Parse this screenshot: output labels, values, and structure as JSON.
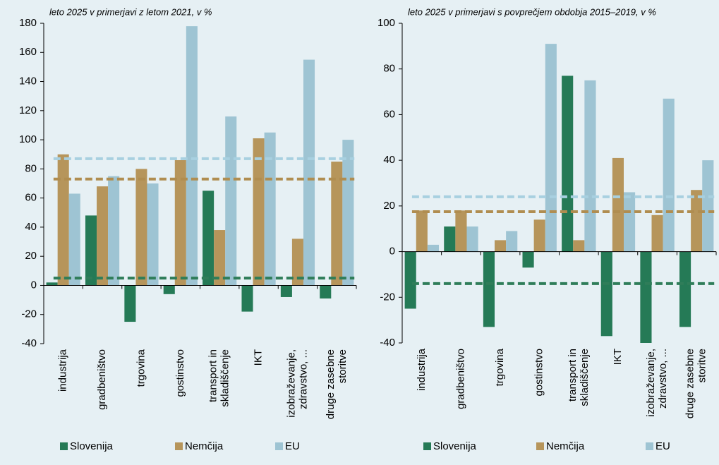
{
  "chart_data": [
    {
      "type": "bar",
      "subtitle": "leto 2025 v primerjavi z letom 2021, v %",
      "categories": [
        "industrija",
        "gradbeništvo",
        "trgovina",
        "gostinstvo",
        "transport in\nskladiščenje",
        "IKT",
        "izobraževanje,\nzdravstvo, ...",
        "druge zasebne\nstoritve"
      ],
      "series": [
        {
          "name": "Slovenija",
          "color": "#257a56",
          "line_color": "#2f7d59",
          "values": [
            2,
            48,
            -25,
            -6,
            65,
            -18,
            -8,
            -9
          ],
          "average": 5
        },
        {
          "name": "Nemčija",
          "color": "#b6955b",
          "line_color": "#b08d50",
          "values": [
            90,
            68,
            80,
            86,
            38,
            101,
            32,
            85
          ],
          "average": 73
        },
        {
          "name": "EU",
          "color": "#9ec4d3",
          "line_color": "#a8d0e0",
          "values": [
            63,
            75,
            70,
            178,
            116,
            105,
            155,
            100
          ],
          "average": 87
        }
      ],
      "ylim": [
        -40,
        180
      ],
      "yticks": [
        -40,
        -20,
        0,
        20,
        40,
        60,
        80,
        100,
        120,
        140,
        160,
        180
      ]
    },
    {
      "type": "bar",
      "subtitle": "leto 2025 v primerjavi s povprečjem obdobja 2015–2019, v %",
      "categories": [
        "industrija",
        "gradbeništvo",
        "trgovina",
        "gostinstvo",
        "transport in\nskladiščenje",
        "IKT",
        "izobraževanje,\nzdravstvo, ...",
        "druge zasebne\nstoritve"
      ],
      "series": [
        {
          "name": "Slovenija",
          "color": "#257a56",
          "line_color": "#2f7d59",
          "values": [
            -25,
            11,
            -33,
            -7,
            77,
            -37,
            -40,
            -33
          ],
          "average": -14
        },
        {
          "name": "Nemčija",
          "color": "#b6955b",
          "line_color": "#b08d50",
          "values": [
            18,
            18,
            5,
            14,
            5,
            41,
            16,
            27
          ],
          "average": 17.5
        },
        {
          "name": "EU",
          "color": "#9ec4d3",
          "line_color": "#a8d0e0",
          "values": [
            3,
            11,
            9,
            91,
            75,
            26,
            67,
            40
          ],
          "average": 24
        }
      ],
      "ylim": [
        -40,
        100
      ],
      "yticks": [
        -40,
        -20,
        0,
        20,
        40,
        60,
        80,
        100
      ]
    }
  ]
}
